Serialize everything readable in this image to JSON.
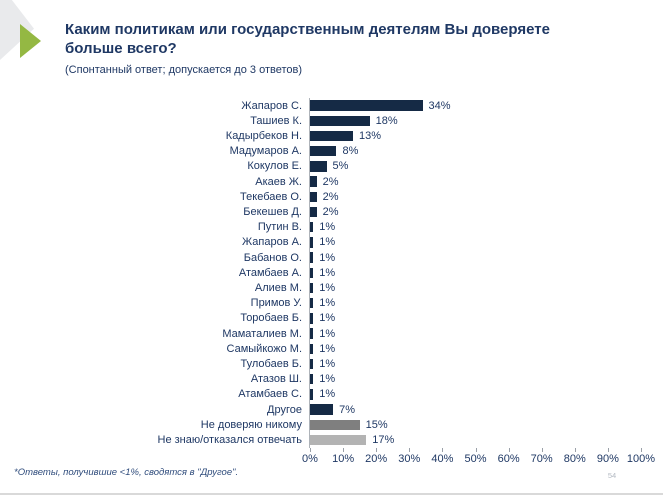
{
  "header": {
    "title": "Каким политикам или государственным деятелям Вы доверяете больше всего?",
    "subtitle": "(Спонтанный ответ; допускается до 3 ответов)"
  },
  "footnote": "*Ответы, получившие <1%, сводятся в \"Другое\".",
  "page_number": "54",
  "colors": {
    "accent_green": "#94b843",
    "bar_navy": "#152a45",
    "bar_gray": "#7f7f7f",
    "bar_light_gray": "#b3b3b3",
    "text_navy": "#1f3864"
  },
  "chart_data": {
    "type": "bar",
    "orientation": "horizontal",
    "title": "Каким политикам или государственным деятелям Вы доверяете больше всего?",
    "xlabel": "",
    "ylabel": "",
    "xlim": [
      0,
      100
    ],
    "grid": false,
    "legend": false,
    "x_ticks": [
      "0%",
      "10%",
      "20%",
      "30%",
      "40%",
      "50%",
      "60%",
      "70%",
      "80%",
      "90%",
      "100%"
    ],
    "categories": [
      "Жапаров С.",
      "Ташиев К.",
      "Кадырбеков Н.",
      "Мадумаров А.",
      "Кокулов Е.",
      "Акаев Ж.",
      "Текебаев О.",
      "Бекешев Д.",
      "Путин В.",
      "Жапаров А.",
      "Бабанов О.",
      "Атамбаев А.",
      "Алиев М.",
      "Примов У.",
      "Торобаев Б.",
      "Маматалиев М.",
      "Самыйкожо М.",
      "Тулобаев Б.",
      "Атазов Ш.",
      "Атамбаев С.",
      "Другое",
      "Не доверяю никому",
      "Не знаю/отказался отвечать"
    ],
    "values": [
      34,
      18,
      13,
      8,
      5,
      2,
      2,
      2,
      1,
      1,
      1,
      1,
      1,
      1,
      1,
      1,
      1,
      1,
      1,
      1,
      7,
      15,
      17
    ],
    "value_labels": [
      "34%",
      "18%",
      "13%",
      "8%",
      "5%",
      "2%",
      "2%",
      "2%",
      "1%",
      "1%",
      "1%",
      "1%",
      "1%",
      "1%",
      "1%",
      "1%",
      "1%",
      "1%",
      "1%",
      "1%",
      "7%",
      "15%",
      "17%"
    ],
    "bar_palette": {
      "navy": "#152a45",
      "gray": "#7f7f7f",
      "light_gray": "#b3b3b3"
    },
    "bar_colors": [
      "navy",
      "navy",
      "navy",
      "navy",
      "navy",
      "navy",
      "navy",
      "navy",
      "navy",
      "navy",
      "navy",
      "navy",
      "navy",
      "navy",
      "navy",
      "navy",
      "navy",
      "navy",
      "navy",
      "navy",
      "navy",
      "gray",
      "light_gray"
    ]
  }
}
